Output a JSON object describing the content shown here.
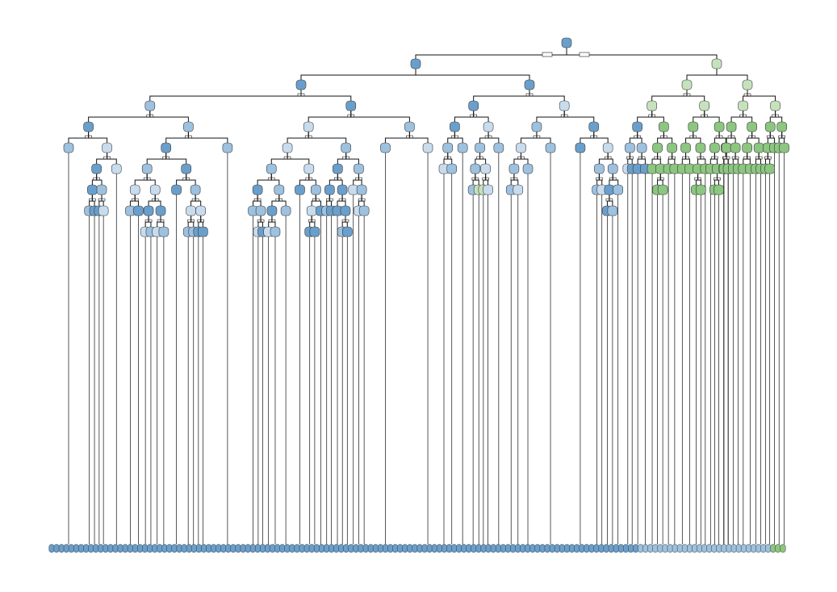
{
  "diagram": {
    "kind": "decision-tree",
    "palette": {
      "blue_dark": "#6a9fcb",
      "blue_mid": "#9dc1df",
      "blue_light": "#c8dcee",
      "green_light": "#c6e2bd",
      "green_dark": "#8cc680",
      "node_stroke": "#3a3a3a",
      "edge": "#111111"
    }
  }
}
